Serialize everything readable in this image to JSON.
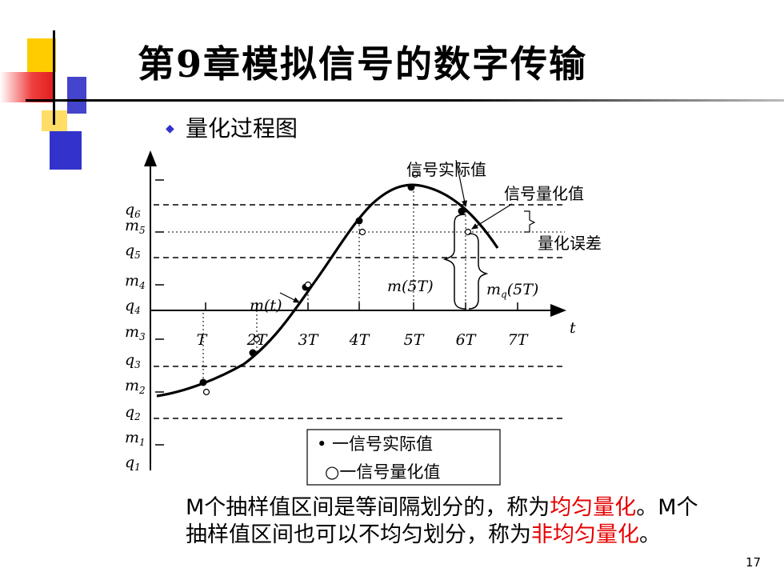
{
  "header": {
    "title": "第9章模拟信号的数字传输"
  },
  "bullet": {
    "text": "量化过程图"
  },
  "diagram": {
    "y_labels": {
      "q6": {
        "base": "q",
        "sub": "6"
      },
      "m5": {
        "base": "m",
        "sub": "5"
      },
      "q5": {
        "base": "q",
        "sub": "5"
      },
      "m4": {
        "base": "m",
        "sub": "4"
      },
      "q4": {
        "base": "q",
        "sub": "4"
      },
      "m3": {
        "base": "m",
        "sub": "3"
      },
      "q3": {
        "base": "q",
        "sub": "3"
      },
      "m2": {
        "base": "m",
        "sub": "2"
      },
      "q2": {
        "base": "q",
        "sub": "2"
      },
      "m1": {
        "base": "m",
        "sub": "1"
      },
      "q1": {
        "base": "q",
        "sub": "1"
      }
    },
    "x_ticks": [
      "T",
      "2T",
      "3T",
      "4T",
      "5T",
      "6T",
      "7T"
    ],
    "x_axis_label": "t",
    "annotations": {
      "actual_value": "信号实际值",
      "quantized_value": "信号量化值",
      "quantization_error": "量化误差",
      "m5t": "m(5T)",
      "mq5t": "mq(5T)",
      "mt": "m(t)"
    },
    "legend": {
      "filled": "• 一信号实际值",
      "hollow": "○一信号量化值"
    }
  },
  "paragraph": {
    "line1_part1": "M个抽样值区间是等间隔划分的，称为",
    "line1_red": "均匀量化",
    "line1_part2": "。M个",
    "line2_part1": "抽样值区间也可以不均匀划分，称为",
    "line2_red": "非均匀量化",
    "line2_part2": "。"
  },
  "page_number": "17",
  "colors": {
    "yellow": "#ffcc00",
    "red": "#ee2222",
    "blue": "#3333cc",
    "red_text": "#e60000"
  }
}
